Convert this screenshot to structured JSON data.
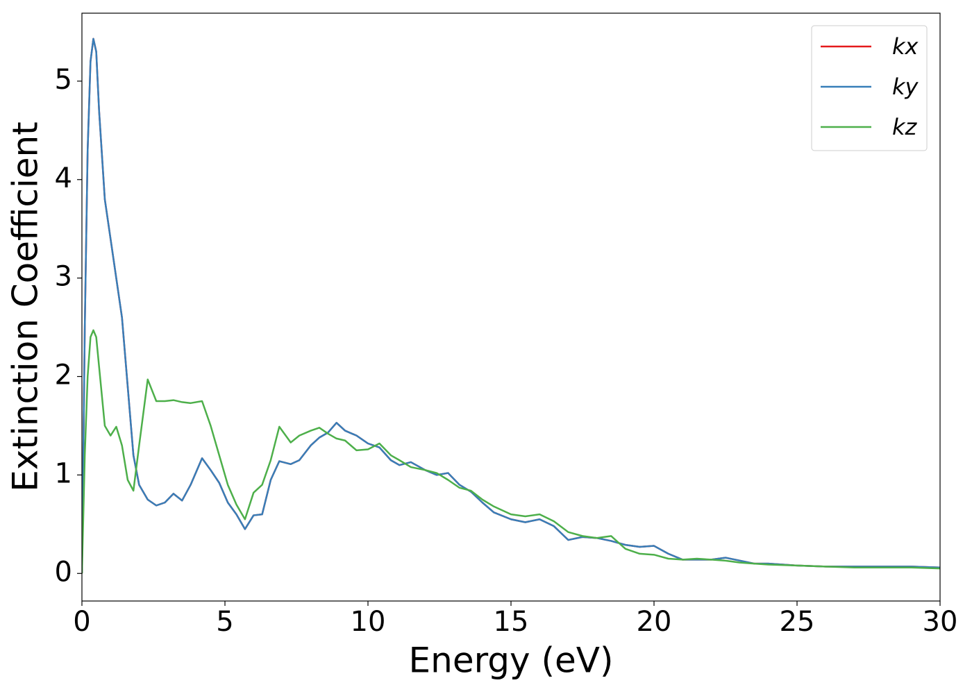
{
  "chart_data": {
    "type": "line",
    "xlabel": "Energy (eV)",
    "ylabel": "Extinction Coefficient",
    "x": [
      0,
      0.1,
      0.2,
      0.3,
      0.4,
      0.5,
      0.6,
      0.8,
      1.0,
      1.2,
      1.4,
      1.6,
      1.8,
      2.0,
      2.3,
      2.6,
      2.9,
      3.2,
      3.5,
      3.8,
      4.2,
      4.5,
      4.8,
      5.1,
      5.4,
      5.7,
      6.0,
      6.3,
      6.6,
      6.9,
      7.3,
      7.6,
      8.0,
      8.3,
      8.6,
      8.9,
      9.2,
      9.6,
      10.0,
      10.4,
      10.8,
      11.1,
      11.5,
      12.0,
      12.4,
      12.8,
      13.2,
      13.6,
      14.0,
      14.4,
      15.0,
      15.5,
      16.0,
      16.5,
      17.0,
      17.5,
      18.0,
      18.5,
      19.0,
      19.5,
      20.0,
      20.5,
      21,
      21.5,
      22,
      22.5,
      23,
      23.5,
      24,
      25,
      26,
      27,
      28,
      29,
      30
    ],
    "series": [
      {
        "name": "kx",
        "color": "#e41a1c",
        "values": [
          0,
          2.5,
          4.3,
          5.2,
          5.43,
          5.3,
          4.7,
          3.8,
          3.4,
          3.0,
          2.6,
          1.9,
          1.2,
          0.9,
          0.75,
          0.69,
          0.72,
          0.81,
          0.74,
          0.9,
          1.17,
          1.05,
          0.92,
          0.72,
          0.6,
          0.45,
          0.59,
          0.6,
          0.95,
          1.14,
          1.11,
          1.15,
          1.3,
          1.38,
          1.43,
          1.53,
          1.45,
          1.4,
          1.32,
          1.28,
          1.15,
          1.1,
          1.13,
          1.05,
          1.0,
          1.02,
          0.9,
          0.83,
          0.72,
          0.62,
          0.55,
          0.52,
          0.55,
          0.48,
          0.34,
          0.37,
          0.36,
          0.33,
          0.29,
          0.27,
          0.28,
          0.2,
          0.14,
          0.14,
          0.14,
          0.16,
          0.13,
          0.1,
          0.1,
          0.08,
          0.07,
          0.07,
          0.07,
          0.07,
          0.06
        ]
      },
      {
        "name": "ky",
        "color": "#377eb8",
        "values": [
          0,
          2.5,
          4.3,
          5.2,
          5.43,
          5.3,
          4.7,
          3.8,
          3.4,
          3.0,
          2.6,
          1.9,
          1.2,
          0.9,
          0.75,
          0.69,
          0.72,
          0.81,
          0.74,
          0.9,
          1.17,
          1.05,
          0.92,
          0.72,
          0.6,
          0.45,
          0.59,
          0.6,
          0.95,
          1.14,
          1.11,
          1.15,
          1.3,
          1.38,
          1.43,
          1.53,
          1.45,
          1.4,
          1.32,
          1.28,
          1.15,
          1.1,
          1.13,
          1.05,
          1.0,
          1.02,
          0.9,
          0.83,
          0.72,
          0.62,
          0.55,
          0.52,
          0.55,
          0.48,
          0.34,
          0.37,
          0.36,
          0.33,
          0.29,
          0.27,
          0.28,
          0.2,
          0.14,
          0.14,
          0.14,
          0.16,
          0.13,
          0.1,
          0.1,
          0.08,
          0.07,
          0.07,
          0.07,
          0.07,
          0.06
        ]
      },
      {
        "name": "kz",
        "color": "#4daf4a",
        "values": [
          0,
          1.2,
          2.0,
          2.4,
          2.47,
          2.4,
          2.1,
          1.5,
          1.4,
          1.49,
          1.3,
          0.95,
          0.84,
          1.3,
          1.97,
          1.75,
          1.75,
          1.76,
          1.74,
          1.73,
          1.75,
          1.5,
          1.2,
          0.9,
          0.7,
          0.55,
          0.82,
          0.9,
          1.15,
          1.49,
          1.33,
          1.4,
          1.45,
          1.48,
          1.42,
          1.37,
          1.35,
          1.25,
          1.26,
          1.32,
          1.2,
          1.15,
          1.08,
          1.05,
          1.02,
          0.95,
          0.87,
          0.84,
          0.75,
          0.68,
          0.6,
          0.58,
          0.6,
          0.53,
          0.42,
          0.38,
          0.36,
          0.38,
          0.25,
          0.2,
          0.19,
          0.15,
          0.14,
          0.15,
          0.14,
          0.13,
          0.11,
          0.1,
          0.09,
          0.08,
          0.07,
          0.06,
          0.06,
          0.06,
          0.05
        ]
      }
    ],
    "xlim": [
      0,
      30
    ],
    "xticks": [
      0,
      5,
      10,
      15,
      20,
      25,
      30
    ],
    "ylim": [
      -0.28,
      5.69
    ],
    "yticks": [
      0,
      1,
      2,
      3,
      4,
      5
    ],
    "legend": "upper right"
  }
}
